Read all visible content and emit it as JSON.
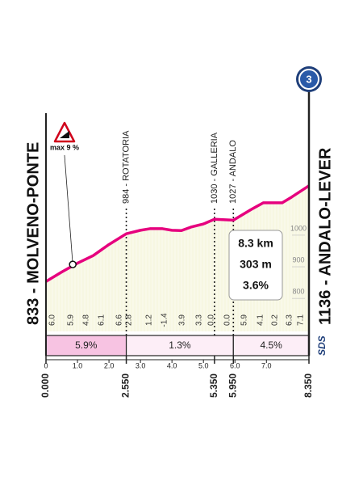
{
  "chart_data": {
    "type": "area",
    "stage": "3",
    "x": [
      0,
      0.5,
      1,
      1.5,
      2,
      2.55,
      3,
      3.3,
      3.7,
      4,
      4.3,
      4.6,
      5,
      5.35,
      5.95,
      6.5,
      6.9,
      7.5,
      7.8,
      8.35
    ],
    "values": [
      833,
      863,
      891,
      915,
      950,
      984,
      995,
      1000,
      1000,
      995,
      994,
      1005,
      1015,
      1030,
      1027,
      1060,
      1082,
      1082,
      1100,
      1136
    ],
    "color": "#e6007e",
    "xlim": [
      0,
      8.35
    ],
    "ylim": [
      675,
      1340
    ],
    "yticks": [
      800,
      900,
      1000
    ],
    "xticks": [
      {
        "value": 0,
        "label": "0"
      },
      {
        "value": 1,
        "label": "1.0"
      },
      {
        "value": 2,
        "label": "2.0"
      },
      {
        "value": 3,
        "label": "3.0"
      },
      {
        "value": 4,
        "label": "4.0"
      },
      {
        "value": 5,
        "label": "5.0"
      },
      {
        "value": 6,
        "label": "6.0"
      },
      {
        "value": 7,
        "label": "7.0"
      }
    ],
    "waypoints": [
      {
        "km": {
          "value": 0,
          "label": "0.000"
        },
        "name": "833 - MOLVENO-PONTE"
      },
      {
        "km": {
          "value": 2.55,
          "label": "2.550"
        },
        "name": "984 - ROTATORIA"
      },
      {
        "km": {
          "value": 5.35,
          "label": "5.350"
        },
        "name": "1030 - GALLERIA"
      },
      {
        "km": {
          "value": 5.95,
          "label": "5.950"
        },
        "name": "1027 - ANDALO"
      },
      {
        "km": {
          "value": 8.35,
          "label": "8.350"
        },
        "name": "1136 - ANDALO-LEVER"
      }
    ],
    "gradients": {
      "values": [
        6,
        5.9,
        4.8,
        6.1,
        6.6,
        2.8,
        1.2,
        -1.4,
        3.9,
        3.3,
        0,
        0,
        5.9,
        4.1,
        0.2,
        6.3,
        7.1
      ],
      "value_labels": [
        "6.0",
        "5.9",
        "4.8",
        "6.1",
        "6.6",
        "2.8",
        "1.2",
        "-1.4",
        "3.9",
        "3.3",
        "0.0",
        "0.0",
        "5.9",
        "4.1",
        "0.2",
        "6.3",
        "7.1"
      ]
    },
    "averages": {
      "values": [
        5.9,
        1.3,
        4.5
      ],
      "value_labels": [
        "5.9%",
        "1.3%",
        "4.5%"
      ],
      "colors": [
        "#f7c3e2",
        "#fdeef7",
        "#fdeef7"
      ]
    },
    "max_gradient": {
      "label": "max 9 %",
      "x": 0.85,
      "y": 887
    },
    "summary": [
      "8.3 km",
      "303 m",
      "3.6%"
    ],
    "brand": "SDS"
  }
}
